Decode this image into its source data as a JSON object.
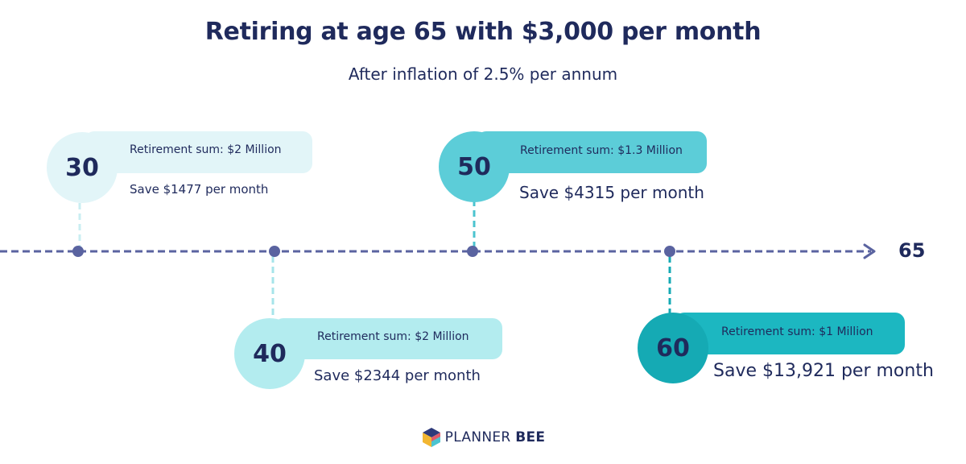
{
  "header": {
    "title": "Retiring at age 65 with $3,000 per month",
    "subtitle": "After inflation of 2.5% per annum"
  },
  "timeline": {
    "end_label": "65",
    "milestones": [
      {
        "age": "30",
        "sum": "Retirement sum: $2 Million",
        "save": "Save $1477 per month"
      },
      {
        "age": "40",
        "sum": "Retirement sum: $2 Million",
        "save": "Save $2344 per month"
      },
      {
        "age": "50",
        "sum": "Retirement sum: $1.3 Million",
        "save": "Save $4315 per month"
      },
      {
        "age": "60",
        "sum": "Retirement sum: $1 Million",
        "save": "Save $13,921 per month"
      }
    ]
  },
  "footer": {
    "brand_main": "PLANNER",
    "brand_bold": "BEE",
    "logo_icon": "planner-bee-logo-icon"
  },
  "colors": {
    "navy": "#1f2a5c",
    "line": "#5a63a0",
    "card30_bar": "#e2f5f8",
    "card30_circle": "#e2f5f8",
    "card40_bar": "#b3ecef",
    "card40_circle": "#b3ecef",
    "card50_bar": "#5ccdd8",
    "card50_circle": "#5ccdd8",
    "card60_bar": "#1cb7c1",
    "card60_circle": "#15aab4"
  }
}
